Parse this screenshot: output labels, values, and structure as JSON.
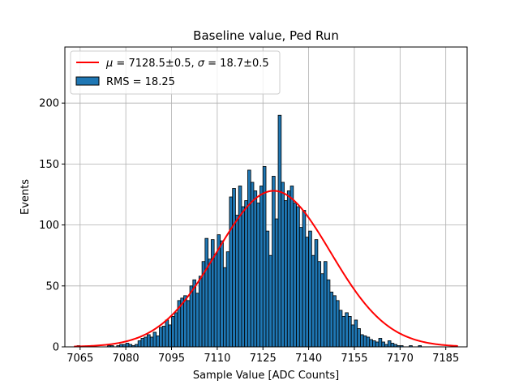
{
  "chart_data": {
    "type": "bar",
    "title": "Baseline value, Ped Run",
    "xlabel": "Sample Value [ADC Counts]",
    "ylabel": "Events",
    "xlim": [
      7060,
      7192
    ],
    "ylim": [
      0,
      246
    ],
    "grid": true,
    "legend_position": "top-left",
    "xticks": [
      7065,
      7080,
      7095,
      7110,
      7125,
      7140,
      7155,
      7170,
      7185
    ],
    "yticks": [
      0,
      50,
      100,
      150,
      200
    ],
    "histogram": {
      "bin_start": 7064,
      "bin_width": 1,
      "edge_color": "#000000",
      "fill_color": "#1f77b4",
      "counts": [
        1,
        0,
        0,
        0,
        0,
        0,
        0,
        0,
        0,
        0,
        1,
        1,
        0,
        1,
        2,
        2,
        3,
        2,
        1,
        2,
        5,
        7,
        8,
        10,
        8,
        12,
        9,
        16,
        17,
        22,
        18,
        25,
        28,
        38,
        40,
        42,
        38,
        50,
        55,
        44,
        58,
        70,
        89,
        72,
        88,
        76,
        92,
        87,
        65,
        78,
        123,
        130,
        108,
        132,
        115,
        120,
        145,
        135,
        128,
        118,
        132,
        148,
        95,
        75,
        140,
        105,
        190,
        135,
        120,
        128,
        132,
        118,
        115,
        98,
        112,
        90,
        95,
        75,
        88,
        70,
        60,
        70,
        55,
        45,
        42,
        38,
        30,
        25,
        28,
        25,
        18,
        22,
        15,
        10,
        9,
        8,
        6,
        5,
        4,
        7,
        4,
        2,
        5,
        3,
        2,
        1,
        1,
        0,
        0,
        1,
        0,
        0,
        1
      ]
    },
    "fit_curve": {
      "mu": 7128.5,
      "sigma": 18.7,
      "amplitude": 128,
      "x_range": [
        7063,
        7189
      ],
      "color": "#ff0000"
    },
    "legend": [
      {
        "label_prefix": "μ",
        "label": " = 7128.5±0.5, ",
        "label_sigma": "σ",
        "label_suffix": " = 18.7±0.5",
        "type": "line",
        "color": "#ff0000"
      },
      {
        "label": "RMS = 18.25",
        "type": "patch",
        "color": "#1f77b4"
      }
    ]
  }
}
